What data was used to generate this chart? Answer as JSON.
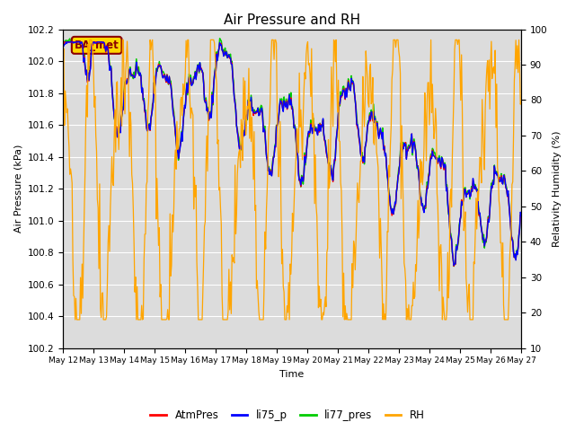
{
  "title": "Air Pressure and RH",
  "ylabel_left": "Air Pressure (kPa)",
  "ylabel_right": "Relativity Humidity (%)",
  "xlabel": "Time",
  "annotation_text": "BA_met",
  "annotation_color": "#8B0000",
  "annotation_bg": "#FFD700",
  "ylim_left": [
    100.2,
    102.2
  ],
  "ylim_right": [
    10,
    100
  ],
  "yticks_left": [
    100.2,
    100.4,
    100.6,
    100.8,
    101.0,
    101.2,
    101.4,
    101.6,
    101.8,
    102.0,
    102.2
  ],
  "yticks_right": [
    10,
    20,
    30,
    40,
    50,
    60,
    70,
    80,
    90,
    100
  ],
  "xtick_labels": [
    "May 12",
    "May 13",
    "May 14",
    "May 15",
    "May 16",
    "May 17",
    "May 18",
    "May 19",
    "May 20",
    "May 21",
    "May 22",
    "May 23",
    "May 24",
    "May 25",
    "May 26",
    "May 27"
  ],
  "legend_labels": [
    "AtmPres",
    "li75_p",
    "li77_pres",
    "RH"
  ],
  "legend_colors": [
    "#FF0000",
    "#0000FF",
    "#00CC00",
    "#FFA500"
  ],
  "color_atmpres": "#FF0000",
  "color_li75": "#0000FF",
  "color_li77": "#00CC00",
  "color_rh": "#FFA500",
  "bg_color": "#DCDCDC",
  "n_points": 600,
  "seed": 7
}
